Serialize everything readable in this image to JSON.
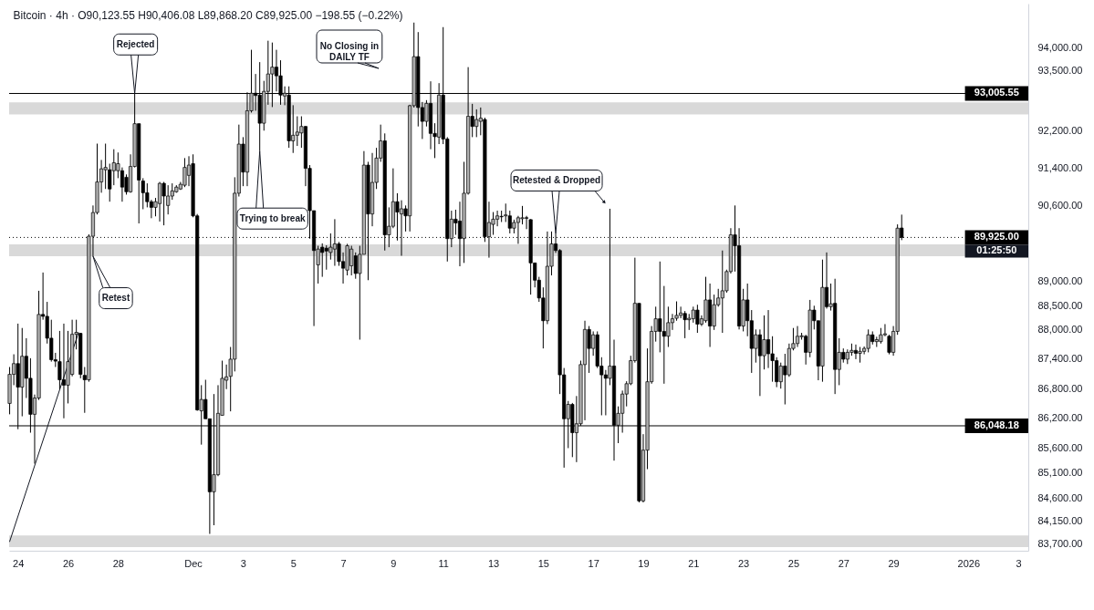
{
  "chart_data": {
    "type": "candlestick",
    "title": "Bitcoin · 4h · O90,123.55 H90,406.08 L89,868.20 C89,925.00 −198.55 (−0.22%)",
    "log": true,
    "color": "#000000",
    "x": [
      "2025-11-23T16:00",
      "2025-11-23T20:00",
      "2025-11-24T00:00",
      "2025-11-24T04:00",
      "2025-11-24T08:00",
      "2025-11-24T12:00",
      "2025-11-24T16:00",
      "2025-11-24T20:00",
      "2025-11-25T00:00",
      "2025-11-25T04:00",
      "2025-11-25T08:00",
      "2025-11-25T12:00",
      "2025-11-25T16:00",
      "2025-11-25T20:00",
      "2025-11-26T00:00",
      "2025-11-26T04:00",
      "2025-11-26T08:00",
      "2025-11-26T12:00",
      "2025-11-26T16:00",
      "2025-11-26T20:00",
      "2025-11-27T00:00",
      "2025-11-27T04:00",
      "2025-11-27T08:00",
      "2025-11-27T12:00",
      "2025-11-27T16:00",
      "2025-11-27T20:00",
      "2025-11-28T00:00",
      "2025-11-28T04:00",
      "2025-11-28T08:00",
      "2025-11-28T12:00",
      "2025-11-28T16:00",
      "2025-11-28T20:00",
      "2025-11-29T00:00",
      "2025-11-29T04:00",
      "2025-11-29T08:00",
      "2025-11-29T12:00",
      "2025-11-29T16:00",
      "2025-11-29T20:00",
      "2025-11-30T00:00",
      "2025-11-30T04:00",
      "2025-11-30T08:00",
      "2025-11-30T12:00",
      "2025-11-30T16:00",
      "2025-11-30T20:00",
      "2025-12-01T00:00",
      "2025-12-01T04:00",
      "2025-12-01T08:00",
      "2025-12-01T12:00",
      "2025-12-01T16:00",
      "2025-12-01T20:00",
      "2025-12-02T00:00",
      "2025-12-02T04:00",
      "2025-12-02T08:00",
      "2025-12-02T12:00",
      "2025-12-02T16:00",
      "2025-12-02T20:00",
      "2025-12-03T00:00",
      "2025-12-03T04:00",
      "2025-12-03T08:00",
      "2025-12-03T12:00",
      "2025-12-03T16:00",
      "2025-12-03T20:00",
      "2025-12-04T00:00",
      "2025-12-04T04:00",
      "2025-12-04T08:00",
      "2025-12-04T12:00",
      "2025-12-04T16:00",
      "2025-12-04T20:00",
      "2025-12-05T00:00",
      "2025-12-05T04:00",
      "2025-12-05T08:00",
      "2025-12-05T12:00",
      "2025-12-05T16:00",
      "2025-12-05T20:00",
      "2025-12-06T00:00",
      "2025-12-06T04:00",
      "2025-12-06T08:00",
      "2025-12-06T12:00",
      "2025-12-06T16:00",
      "2025-12-06T20:00",
      "2025-12-07T00:00",
      "2025-12-07T04:00",
      "2025-12-07T08:00",
      "2025-12-07T12:00",
      "2025-12-07T16:00",
      "2025-12-07T20:00",
      "2025-12-08T00:00",
      "2025-12-08T04:00",
      "2025-12-08T08:00",
      "2025-12-08T12:00",
      "2025-12-08T16:00",
      "2025-12-08T20:00",
      "2025-12-09T00:00",
      "2025-12-09T04:00",
      "2025-12-09T08:00",
      "2025-12-09T12:00",
      "2025-12-09T16:00",
      "2025-12-09T20:00",
      "2025-12-10T00:00",
      "2025-12-10T04:00",
      "2025-12-10T08:00",
      "2025-12-10T12:00",
      "2025-12-10T16:00",
      "2025-12-10T20:00",
      "2025-12-11T00:00",
      "2025-12-11T04:00",
      "2025-12-11T08:00",
      "2025-12-11T12:00",
      "2025-12-11T16:00",
      "2025-12-11T20:00",
      "2025-12-12T00:00",
      "2025-12-12T04:00",
      "2025-12-12T08:00",
      "2025-12-12T12:00",
      "2025-12-12T16:00",
      "2025-12-12T20:00",
      "2025-12-13T00:00",
      "2025-12-13T04:00",
      "2025-12-13T08:00",
      "2025-12-13T12:00",
      "2025-12-13T16:00",
      "2025-12-13T20:00",
      "2025-12-14T00:00",
      "2025-12-14T04:00",
      "2025-12-14T08:00",
      "2025-12-14T12:00",
      "2025-12-14T16:00",
      "2025-12-14T20:00",
      "2025-12-15T00:00",
      "2025-12-15T04:00",
      "2025-12-15T08:00",
      "2025-12-15T12:00",
      "2025-12-15T16:00",
      "2025-12-15T20:00",
      "2025-12-16T00:00",
      "2025-12-16T04:00",
      "2025-12-16T08:00",
      "2025-12-16T12:00",
      "2025-12-16T16:00",
      "2025-12-16T20:00",
      "2025-12-17T00:00",
      "2025-12-17T04:00",
      "2025-12-17T08:00",
      "2025-12-17T12:00",
      "2025-12-17T16:00",
      "2025-12-17T20:00",
      "2025-12-18T00:00",
      "2025-12-18T04:00",
      "2025-12-18T08:00",
      "2025-12-18T12:00",
      "2025-12-18T16:00",
      "2025-12-18T20:00",
      "2025-12-19T00:00",
      "2025-12-19T04:00",
      "2025-12-19T08:00",
      "2025-12-19T12:00",
      "2025-12-19T16:00",
      "2025-12-19T20:00",
      "2025-12-20T00:00",
      "2025-12-20T04:00",
      "2025-12-20T08:00",
      "2025-12-20T12:00",
      "2025-12-20T16:00",
      "2025-12-20T20:00",
      "2025-12-21T00:00",
      "2025-12-21T04:00",
      "2025-12-21T08:00",
      "2025-12-21T12:00",
      "2025-12-21T16:00",
      "2025-12-21T20:00",
      "2025-12-22T00:00",
      "2025-12-22T04:00",
      "2025-12-22T08:00",
      "2025-12-22T12:00",
      "2025-12-22T16:00",
      "2025-12-22T20:00",
      "2025-12-23T00:00",
      "2025-12-23T04:00",
      "2025-12-23T08:00",
      "2025-12-23T12:00",
      "2025-12-23T16:00",
      "2025-12-23T20:00",
      "2025-12-24T00:00",
      "2025-12-24T04:00",
      "2025-12-24T08:00",
      "2025-12-24T12:00",
      "2025-12-24T16:00",
      "2025-12-24T20:00",
      "2025-12-25T00:00",
      "2025-12-25T04:00",
      "2025-12-25T08:00",
      "2025-12-25T12:00",
      "2025-12-25T16:00",
      "2025-12-25T20:00",
      "2025-12-26T00:00",
      "2025-12-26T04:00",
      "2025-12-26T08:00",
      "2025-12-26T12:00",
      "2025-12-26T16:00",
      "2025-12-26T20:00",
      "2025-12-27T00:00",
      "2025-12-27T04:00",
      "2025-12-27T08:00",
      "2025-12-27T12:00",
      "2025-12-27T16:00",
      "2025-12-27T20:00",
      "2025-12-28T00:00",
      "2025-12-28T04:00",
      "2025-12-28T08:00",
      "2025-12-28T12:00",
      "2025-12-28T16:00",
      "2025-12-28T20:00",
      "2025-12-29T00:00",
      "2025-12-29T04:00",
      "2025-12-29T08:00"
    ],
    "ohlc": [
      [
        86500,
        87240,
        86280,
        87090
      ],
      [
        87090,
        87500,
        86870,
        87310
      ],
      [
        87310,
        88130,
        85980,
        86830
      ],
      [
        86830,
        88040,
        86240,
        87460
      ],
      [
        87460,
        87830,
        86610,
        87010
      ],
      [
        87010,
        87420,
        85910,
        86280
      ],
      [
        86280,
        86680,
        85290,
        86610
      ],
      [
        86610,
        88810,
        86570,
        88320
      ],
      [
        88320,
        89190,
        88210,
        88280
      ],
      [
        88280,
        88580,
        87720,
        87830
      ],
      [
        87830,
        88210,
        87350,
        87390
      ],
      [
        87390,
        87530,
        87240,
        87360
      ],
      [
        87350,
        87980,
        86790,
        86980
      ],
      [
        86980,
        88130,
        86200,
        86870
      ],
      [
        86870,
        87980,
        86500,
        87350
      ],
      [
        87090,
        88210,
        87050,
        87910
      ],
      [
        87910,
        88210,
        87600,
        87950
      ],
      [
        87930,
        87940,
        87010,
        87090
      ],
      [
        87070,
        87240,
        86310,
        86980
      ],
      [
        86980,
        89990,
        86940,
        89950
      ],
      [
        89950,
        90600,
        89530,
        90450
      ],
      [
        90450,
        91920,
        90410,
        91100
      ],
      [
        91100,
        91570,
        90870,
        91380
      ],
      [
        91360,
        91920,
        90950,
        91410
      ],
      [
        91360,
        91490,
        90680,
        90950
      ],
      [
        91340,
        91800,
        91030,
        91510
      ],
      [
        91340,
        91730,
        91180,
        91490
      ],
      [
        91340,
        91410,
        90680,
        90990
      ],
      [
        91200,
        91260,
        90830,
        90890
      ],
      [
        90890,
        91690,
        90870,
        91430
      ],
      [
        91430,
        93000,
        91410,
        92350
      ],
      [
        92350,
        92350,
        90220,
        91140
      ],
      [
        91120,
        91180,
        90520,
        90870
      ],
      [
        90870,
        91070,
        90560,
        90680
      ],
      [
        90680,
        90720,
        90330,
        90560
      ],
      [
        90560,
        90760,
        90370,
        90680
      ],
      [
        90640,
        91100,
        90260,
        91070
      ],
      [
        91070,
        91100,
        90180,
        90800
      ],
      [
        90600,
        91030,
        90410,
        90800
      ],
      [
        90800,
        91070,
        90720,
        90910
      ],
      [
        90890,
        91030,
        90870,
        90990
      ],
      [
        90950,
        91100,
        90930,
        91050
      ],
      [
        91030,
        91610,
        90990,
        91410
      ],
      [
        91240,
        91650,
        91010,
        91460
      ],
      [
        91490,
        91690,
        90350,
        90380
      ],
      [
        90380,
        90420,
        86350,
        86370
      ],
      [
        86350,
        86870,
        85670,
        86580
      ],
      [
        86580,
        86980,
        86190,
        86190
      ],
      [
        86190,
        86190,
        83900,
        84730
      ],
      [
        84730,
        86690,
        84070,
        85070
      ],
      [
        85070,
        86870,
        85040,
        86300
      ],
      [
        86260,
        87370,
        86260,
        87010
      ],
      [
        86970,
        87290,
        86790,
        87040
      ],
      [
        87050,
        87650,
        86340,
        87400
      ],
      [
        87400,
        91200,
        87150,
        90860
      ],
      [
        90860,
        92330,
        90790,
        91910
      ],
      [
        91910,
        92060,
        91010,
        91310
      ],
      [
        91310,
        93030,
        91010,
        92630
      ],
      [
        92630,
        93960,
        92590,
        93010
      ],
      [
        93010,
        93430,
        92630,
        92960
      ],
      [
        92970,
        93690,
        91760,
        92360
      ],
      [
        92360,
        93280,
        92200,
        93050
      ],
      [
        93050,
        94160,
        92760,
        93430
      ],
      [
        93430,
        94120,
        92710,
        93580
      ],
      [
        93580,
        93960,
        93050,
        93390
      ],
      [
        93390,
        93730,
        92760,
        92970
      ],
      [
        92950,
        93160,
        92750,
        93010
      ],
      [
        92970,
        93160,
        91830,
        91980
      ],
      [
        91980,
        92750,
        91720,
        92100
      ],
      [
        92100,
        92510,
        91870,
        92170
      ],
      [
        92150,
        92510,
        91830,
        92290
      ],
      [
        92290,
        92300,
        91010,
        91390
      ],
      [
        91390,
        91460,
        89900,
        90490
      ],
      [
        90490,
        90490,
        88080,
        89650
      ],
      [
        89350,
        89750,
        88960,
        89680
      ],
      [
        89720,
        89800,
        89100,
        89610
      ],
      [
        89700,
        89760,
        89250,
        89640
      ],
      [
        89610,
        90010,
        89460,
        89720
      ],
      [
        89680,
        90310,
        89330,
        89790
      ],
      [
        89790,
        89830,
        89330,
        89420
      ],
      [
        89420,
        89610,
        88960,
        89280
      ],
      [
        89240,
        89790,
        89130,
        89750
      ],
      [
        89330,
        89750,
        89130,
        89680
      ],
      [
        89540,
        89610,
        89060,
        89170
      ],
      [
        89170,
        89750,
        87800,
        89570
      ],
      [
        89570,
        91760,
        89570,
        91460
      ],
      [
        91460,
        91530,
        89030,
        90420
      ],
      [
        90420,
        91720,
        90160,
        91090
      ],
      [
        91090,
        91830,
        90950,
        91610
      ],
      [
        91610,
        92330,
        91530,
        91980
      ],
      [
        91980,
        92140,
        89650,
        89980
      ],
      [
        89980,
        90560,
        89720,
        90160
      ],
      [
        90160,
        91390,
        90120,
        90680
      ],
      [
        90680,
        90860,
        89860,
        90460
      ],
      [
        90420,
        90710,
        89540,
        90530
      ],
      [
        90530,
        90600,
        90050,
        90380
      ],
      [
        90380,
        92760,
        90050,
        92740
      ],
      [
        92740,
        94560,
        92700,
        93810
      ],
      [
        93810,
        94350,
        92290,
        92700
      ],
      [
        92700,
        92820,
        92020,
        92400
      ],
      [
        92400,
        92860,
        92290,
        92790
      ],
      [
        92790,
        93270,
        91800,
        92140
      ],
      [
        92140,
        92360,
        91610,
        92070
      ],
      [
        92060,
        93230,
        91910,
        92970
      ],
      [
        92970,
        94460,
        91910,
        92020
      ],
      [
        92020,
        92060,
        89420,
        89900
      ],
      [
        89900,
        90490,
        89720,
        90310
      ],
      [
        90310,
        90510,
        89980,
        90230
      ],
      [
        90270,
        90680,
        89320,
        89900
      ],
      [
        89900,
        91530,
        89390,
        90860
      ],
      [
        90860,
        93580,
        90830,
        92510
      ],
      [
        92510,
        92780,
        92060,
        92290
      ],
      [
        92290,
        92660,
        92060,
        92440
      ],
      [
        92400,
        92700,
        92100,
        92470
      ],
      [
        92440,
        92480,
        89830,
        89940
      ],
      [
        89940,
        90680,
        89500,
        90240
      ],
      [
        90200,
        90460,
        89980,
        90310
      ],
      [
        90310,
        90490,
        90160,
        90380
      ],
      [
        90370,
        90490,
        90250,
        90360
      ],
      [
        90380,
        90640,
        90250,
        90400
      ],
      [
        90380,
        90490,
        90010,
        90120
      ],
      [
        90120,
        90300,
        90010,
        90240
      ],
      [
        90240,
        90380,
        89790,
        90340
      ],
      [
        90320,
        90590,
        90200,
        90340
      ],
      [
        90340,
        90380,
        90100,
        90330
      ],
      [
        90300,
        90310,
        88730,
        89390
      ],
      [
        89390,
        89390,
        88880,
        89030
      ],
      [
        89030,
        89100,
        88580,
        88660
      ],
      [
        88660,
        88880,
        87620,
        88190
      ],
      [
        88190,
        90050,
        88120,
        89320
      ],
      [
        89320,
        90050,
        89130,
        89790
      ],
      [
        89790,
        90010,
        89600,
        89650
      ],
      [
        89650,
        89680,
        86690,
        87080
      ],
      [
        87080,
        87220,
        85210,
        86190
      ],
      [
        86190,
        86550,
        85600,
        86480
      ],
      [
        86480,
        86510,
        85420,
        85910
      ],
      [
        85910,
        86650,
        85320,
        86090
      ],
      [
        86090,
        87370,
        86050,
        87290
      ],
      [
        87290,
        88190,
        86160,
        88010
      ],
      [
        88010,
        88080,
        87120,
        87620
      ],
      [
        87620,
        87970,
        87470,
        87900
      ],
      [
        87900,
        87970,
        87220,
        87260
      ],
      [
        87260,
        87440,
        86260,
        87080
      ],
      [
        87080,
        87180,
        86260,
        87010
      ],
      [
        87010,
        90530,
        86870,
        87260
      ],
      [
        87260,
        87800,
        85350,
        86060
      ],
      [
        86060,
        86440,
        85700,
        86300
      ],
      [
        86300,
        86760,
        85910,
        86690
      ],
      [
        86690,
        86950,
        86440,
        86900
      ],
      [
        86900,
        87470,
        86870,
        87370
      ],
      [
        87370,
        89500,
        87330,
        88550
      ],
      [
        88550,
        88550,
        84520,
        84550
      ],
      [
        84550,
        85880,
        84520,
        85560
      ],
      [
        85560,
        87620,
        85180,
        86940
      ],
      [
        86940,
        88080,
        86900,
        87970
      ],
      [
        87970,
        88480,
        87760,
        88230
      ],
      [
        88230,
        89420,
        87540,
        87970
      ],
      [
        87970,
        88910,
        86900,
        87870
      ],
      [
        87870,
        88480,
        87650,
        88150
      ],
      [
        88150,
        88330,
        88000,
        88230
      ],
      [
        88240,
        88590,
        88190,
        88300
      ],
      [
        88300,
        88480,
        88240,
        88350
      ],
      [
        88340,
        88390,
        87830,
        88210
      ],
      [
        88210,
        88330,
        88000,
        88240
      ],
      [
        88230,
        88480,
        88150,
        88410
      ],
      [
        88410,
        88520,
        87940,
        88120
      ],
      [
        88120,
        88300,
        88080,
        88230
      ],
      [
        88190,
        89100,
        88150,
        88620
      ],
      [
        88620,
        88960,
        87650,
        88080
      ],
      [
        88080,
        88730,
        88000,
        88520
      ],
      [
        88520,
        88850,
        88480,
        88660
      ],
      [
        88660,
        89650,
        87940,
        88810
      ],
      [
        88810,
        89250,
        88770,
        89210
      ],
      [
        89210,
        90120,
        89170,
        89980
      ],
      [
        89980,
        90600,
        89210,
        89750
      ],
      [
        89750,
        90120,
        88010,
        88080
      ],
      [
        88080,
        88850,
        87970,
        88620
      ],
      [
        88620,
        88960,
        87870,
        88190
      ],
      [
        88190,
        88410,
        87120,
        87620
      ],
      [
        87620,
        88010,
        87330,
        87900
      ],
      [
        87900,
        88010,
        86650,
        87470
      ],
      [
        87470,
        88300,
        87190,
        87800
      ],
      [
        87800,
        88410,
        87220,
        87510
      ],
      [
        87510,
        87870,
        86940,
        87370
      ],
      [
        87370,
        87440,
        86830,
        86940
      ],
      [
        86940,
        87330,
        86800,
        87260
      ],
      [
        87260,
        87510,
        86480,
        87080
      ],
      [
        87080,
        87720,
        87040,
        87620
      ],
      [
        87620,
        88040,
        87580,
        87720
      ],
      [
        87720,
        88080,
        87650,
        87870
      ],
      [
        87860,
        87940,
        87800,
        87880
      ],
      [
        87870,
        87900,
        87290,
        87540
      ],
      [
        87540,
        88620,
        87440,
        88410
      ],
      [
        88410,
        88500,
        88010,
        88190
      ],
      [
        88190,
        88190,
        86970,
        87260
      ],
      [
        87260,
        89460,
        86940,
        88880
      ],
      [
        88880,
        89610,
        88440,
        88480
      ],
      [
        88480,
        88960,
        88400,
        88540
      ],
      [
        88550,
        89060,
        86690,
        87190
      ],
      [
        87190,
        87830,
        86870,
        87540
      ],
      [
        87540,
        87620,
        87330,
        87400
      ],
      [
        87400,
        87600,
        87300,
        87540
      ],
      [
        87540,
        87720,
        87470,
        87580
      ],
      [
        87580,
        87700,
        87400,
        87520
      ],
      [
        87520,
        87650,
        87330,
        87560
      ],
      [
        87560,
        87660,
        87500,
        87620
      ],
      [
        87620,
        88010,
        87540,
        87900
      ],
      [
        87900,
        87970,
        87700,
        87760
      ],
      [
        87760,
        87860,
        87650,
        87800
      ],
      [
        87760,
        88040,
        87720,
        87900
      ],
      [
        87900,
        88120,
        87870,
        87920
      ],
      [
        87870,
        87900,
        87500,
        87540
      ],
      [
        87540,
        88080,
        87470,
        87970
      ],
      [
        87970,
        90200,
        87900,
        90120
      ],
      [
        90123.55,
        90406.08,
        89868.2,
        89925
      ]
    ],
    "colors": [
      "#b0b0b0",
      "#b0b0b0",
      "#000000",
      "#b0b0b0",
      "#000000",
      "#000000",
      "#b0b0b0",
      "#b0b0b0",
      "#000000",
      "#000000",
      "#000000",
      "#000000",
      "#000000",
      "#000000",
      "#b0b0b0",
      "#b0b0b0",
      "#b0b0b0",
      "#000000",
      "#000000",
      "#b0b0b0",
      "#b0b0b0",
      "#b0b0b0",
      "#b0b0b0",
      "#b0b0b0",
      "#000000",
      "#b0b0b0",
      "#b0b0b0",
      "#000000",
      "#000000",
      "#b0b0b0",
      "#b0b0b0",
      "#000000",
      "#000000",
      "#000000",
      "#000000",
      "#b0b0b0",
      "#b0b0b0",
      "#000000",
      "#b0b0b0",
      "#b0b0b0",
      "#b0b0b0",
      "#b0b0b0",
      "#b0b0b0",
      "#b0b0b0",
      "#000000",
      "#000000",
      "#b0b0b0",
      "#000000",
      "#000000",
      "#b0b0b0",
      "#b0b0b0",
      "#b0b0b0",
      "#b0b0b0",
      "#b0b0b0",
      "#b0b0b0",
      "#b0b0b0",
      "#000000",
      "#b0b0b0",
      "#b0b0b0",
      "#000000",
      "#000000",
      "#b0b0b0",
      "#b0b0b0",
      "#b0b0b0",
      "#000000",
      "#000000",
      "#b0b0b0",
      "#000000",
      "#b0b0b0",
      "#b0b0b0",
      "#b0b0b0",
      "#000000",
      "#000000",
      "#000000",
      "#b0b0b0",
      "#000000",
      "#000000",
      "#b0b0b0",
      "#b0b0b0",
      "#000000",
      "#000000",
      "#b0b0b0",
      "#b0b0b0",
      "#000000",
      "#b0b0b0",
      "#b0b0b0",
      "#000000",
      "#b0b0b0",
      "#b0b0b0",
      "#b0b0b0",
      "#000000",
      "#b0b0b0",
      "#b0b0b0",
      "#000000",
      "#b0b0b0",
      "#000000",
      "#b0b0b0",
      "#b0b0b0",
      "#000000",
      "#000000",
      "#b0b0b0",
      "#000000",
      "#000000",
      "#b0b0b0",
      "#000000",
      "#000000",
      "#b0b0b0",
      "#000000",
      "#000000",
      "#b0b0b0",
      "#b0b0b0",
      "#000000",
      "#b0b0b0",
      "#b0b0b0",
      "#000000",
      "#b0b0b0",
      "#b0b0b0",
      "#b0b0b0",
      "#000000",
      "#b0b0b0",
      "#000000",
      "#b0b0b0",
      "#b0b0b0",
      "#b0b0b0",
      "#000000",
      "#000000",
      "#000000",
      "#000000",
      "#000000",
      "#b0b0b0",
      "#b0b0b0",
      "#000000",
      "#000000",
      "#000000",
      "#b0b0b0",
      "#000000",
      "#b0b0b0",
      "#b0b0b0",
      "#b0b0b0",
      "#000000",
      "#b0b0b0",
      "#000000",
      "#000000",
      "#000000",
      "#b0b0b0",
      "#000000",
      "#b0b0b0",
      "#b0b0b0",
      "#b0b0b0",
      "#b0b0b0",
      "#b0b0b0",
      "#000000",
      "#b0b0b0",
      "#b0b0b0",
      "#b0b0b0",
      "#b0b0b0",
      "#000000",
      "#000000",
      "#b0b0b0",
      "#b0b0b0",
      "#b0b0b0",
      "#b0b0b0",
      "#000000",
      "#b0b0b0",
      "#b0b0b0",
      "#000000",
      "#b0b0b0",
      "#b0b0b0",
      "#000000",
      "#b0b0b0",
      "#b0b0b0",
      "#b0b0b0",
      "#b0b0b0",
      "#b0b0b0",
      "#000000",
      "#000000",
      "#b0b0b0",
      "#000000",
      "#000000",
      "#b0b0b0",
      "#000000",
      "#b0b0b0",
      "#000000",
      "#000000",
      "#000000",
      "#b0b0b0",
      "#000000",
      "#b0b0b0",
      "#b0b0b0",
      "#b0b0b0",
      "#b0b0b0",
      "#000000",
      "#b0b0b0",
      "#000000",
      "#000000",
      "#b0b0b0",
      "#000000",
      "#b0b0b0",
      "#000000",
      "#b0b0b0",
      "#000000",
      "#b0b0b0",
      "#b0b0b0",
      "#000000",
      "#b0b0b0",
      "#b0b0b0",
      "#b0b0b0",
      "#000000",
      "#b0b0b0",
      "#b0b0b0",
      "#b0b0b0",
      "#000000",
      "#b0b0b0",
      "#b0b0b0",
      "#000000"
    ],
    "series": [
      {
        "type": "line",
        "x": [
          "2025-11-23T16:00",
          "2025-11-26T10:00"
        ],
        "values": [
          83750,
          87940
        ],
        "color": "#131722"
      }
    ],
    "xlim": [
      "2025-11-23T15:30",
      "2026-01-03T09:30"
    ],
    "xticks": [
      {
        "value": "2025-11-24",
        "label": "24"
      },
      {
        "value": "2025-11-26",
        "label": "26"
      },
      {
        "value": "2025-11-28",
        "label": "28"
      },
      {
        "value": "2025-12-01",
        "label": "Dec"
      },
      {
        "value": "2025-12-03",
        "label": "3"
      },
      {
        "value": "2025-12-05",
        "label": "5"
      },
      {
        "value": "2025-12-07",
        "label": "7"
      },
      {
        "value": "2025-12-09",
        "label": "9"
      },
      {
        "value": "2025-12-11",
        "label": "11"
      },
      {
        "value": "2025-12-13",
        "label": "13"
      },
      {
        "value": "2025-12-15",
        "label": "15"
      },
      {
        "value": "2025-12-17",
        "label": "17"
      },
      {
        "value": "2025-12-19",
        "label": "19"
      },
      {
        "value": "2025-12-21",
        "label": "21"
      },
      {
        "value": "2025-12-23",
        "label": "23"
      },
      {
        "value": "2025-12-25",
        "label": "25"
      },
      {
        "value": "2025-12-27",
        "label": "27"
      },
      {
        "value": "2025-12-29",
        "label": "29"
      },
      {
        "value": "2026-01-01",
        "label": "2026"
      },
      {
        "value": "2026-01-03",
        "label": "3"
      }
    ],
    "ylim": [
      83570,
      94980
    ],
    "yticks": [
      {
        "value": 94000,
        "label": "94,000.00"
      },
      {
        "value": 93500,
        "label": "93,500.00"
      },
      {
        "value": 92200,
        "label": "92,200.00"
      },
      {
        "value": 91400,
        "label": "91,400.00"
      },
      {
        "value": 90600,
        "label": "90,600.00"
      },
      {
        "value": 89000,
        "label": "89,000.00"
      },
      {
        "value": 88500,
        "label": "88,500.00"
      },
      {
        "value": 88000,
        "label": "88,000.00"
      },
      {
        "value": 87400,
        "label": "87,400.00"
      },
      {
        "value": 86800,
        "label": "86,800.00"
      },
      {
        "value": 86200,
        "label": "86,200.00"
      },
      {
        "value": 85600,
        "label": "85,600.00"
      },
      {
        "value": 85100,
        "label": "85,100.00"
      },
      {
        "value": 84600,
        "label": "84,600.00"
      },
      {
        "value": 84150,
        "label": "84,150.00"
      },
      {
        "value": 83700,
        "label": "83,700.00"
      }
    ],
    "ref_lines": [
      {
        "axis": "y",
        "value": 93005.55,
        "label": "93,005.55",
        "color": "#000000"
      },
      {
        "axis": "y",
        "value": 86048.18,
        "label": "86,048.18",
        "color": "#000000"
      },
      {
        "axis": "y",
        "value": 89925,
        "label": "89,925.00",
        "color": "#000000",
        "line_style": "dotted"
      }
    ],
    "bands": [
      {
        "axis": "y",
        "from": 92550,
        "to": 92810,
        "color": "#d9d9d9"
      },
      {
        "axis": "y",
        "from": 89530,
        "to": 89780,
        "color": "#d9d9d9"
      },
      {
        "axis": "y",
        "from": 83640,
        "to": 83870,
        "color": "#d9d9d9"
      }
    ],
    "annotations": [
      {
        "text": "Rejected",
        "x": "2025-11-28T16:00",
        "y": 93000
      },
      {
        "text": "Retest",
        "x": "2025-11-27T00:00",
        "y": 89530
      },
      {
        "text": "Trying to break",
        "x": "2025-12-03T16:00",
        "y": 91760
      },
      "No Closing in DAILY TF",
      {
        "text": "Retested & Dropped",
        "x": "2025-12-15T12:00",
        "y": 90010
      },
      {
        "text": "01:25:50",
        "y": 89925
      }
    ]
  }
}
